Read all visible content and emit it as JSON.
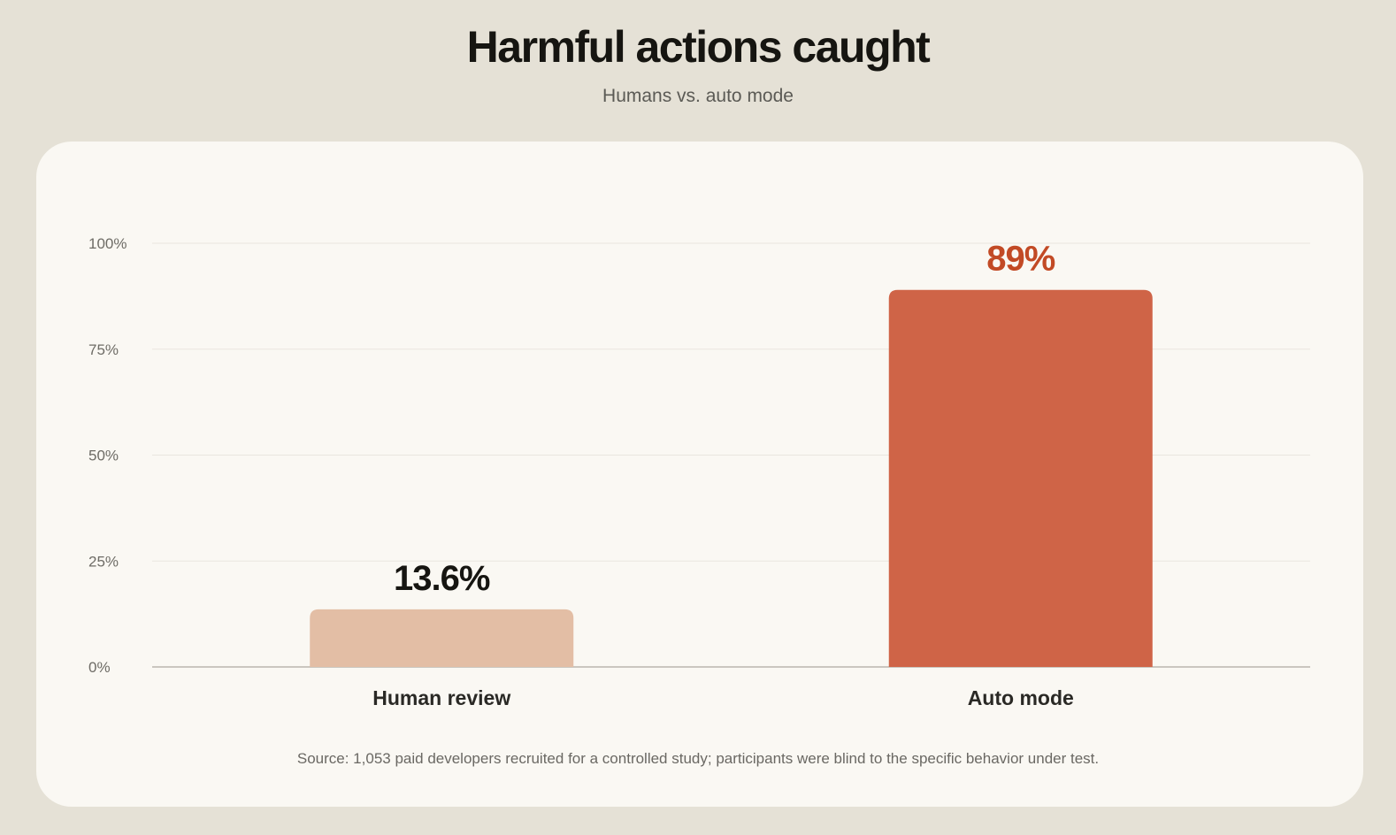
{
  "chart_data": {
    "type": "bar",
    "title": "Harmful actions caught",
    "subtitle": "Humans vs. auto mode",
    "categories": [
      "Human review",
      "Auto mode"
    ],
    "values": [
      13.6,
      89
    ],
    "value_labels": [
      "13.6%",
      "89%"
    ],
    "yticks": [
      0,
      25,
      50,
      75,
      100
    ],
    "ytick_labels": [
      "0%",
      "25%",
      "50%",
      "75%",
      "100%"
    ],
    "ylim": [
      0,
      100
    ],
    "xlabel": "",
    "ylabel": "",
    "grid": true,
    "legend": "none",
    "bar_colors": [
      "#e3bea5",
      "#cf6447"
    ],
    "value_label_colors": [
      "#161511",
      "#c24a25"
    ],
    "source": "Source: 1,053 paid developers recruited for a controlled study; participants were blind to the specific behavior under test."
  }
}
